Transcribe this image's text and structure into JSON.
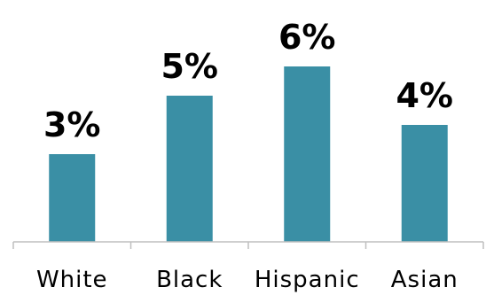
{
  "colors": {
    "bar": "#3a8fa5",
    "axis": "#bfbfbf",
    "text": "#000000"
  },
  "chart_data": {
    "type": "bar",
    "categories": [
      "White",
      "Black",
      "Hispanic",
      "Asian"
    ],
    "values": [
      3,
      5,
      6,
      4
    ],
    "data_labels": [
      "3%",
      "5%",
      "6%",
      "4%"
    ],
    "ylim": [
      0,
      6.0
    ],
    "grid": false,
    "legend": "none"
  }
}
